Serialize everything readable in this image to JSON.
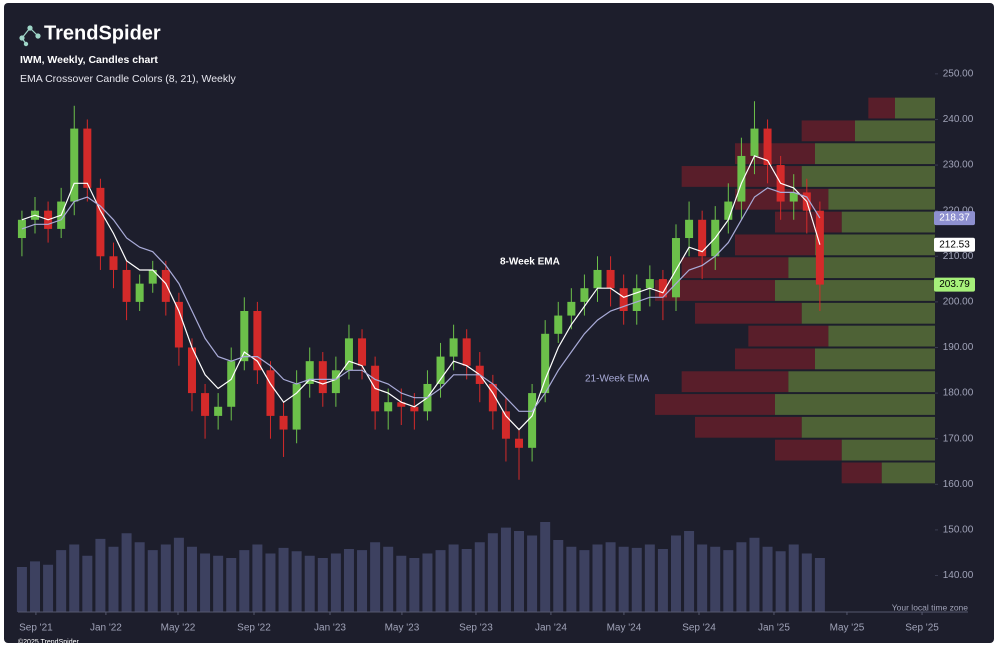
{
  "header": {
    "logo": "TrendSpider",
    "chart_name": "IWM, Weekly, Candles chart",
    "indicator": "EMA Crossover Candle Colors (8, 21), Weekly"
  },
  "footer": {
    "timezone": "Your local time zone",
    "copyright": "©2025 TrendSpider"
  },
  "chart_data": {
    "type": "candlestick",
    "candles": {
      "open": [
        214,
        218,
        220,
        216,
        222,
        238,
        225,
        210,
        207,
        200,
        204,
        207,
        200,
        190,
        180,
        175,
        177,
        187,
        198,
        185,
        175,
        172,
        182,
        187,
        180,
        185,
        192,
        186,
        176,
        178,
        177,
        176,
        182,
        188,
        192,
        186,
        182,
        176,
        170,
        168,
        180,
        193,
        197,
        200,
        203,
        207,
        203,
        198,
        203,
        205,
        201,
        214,
        218,
        210,
        218,
        222,
        232,
        238,
        230,
        222,
        224,
        220
      ],
      "high": [
        220,
        223,
        222,
        225,
        243,
        240,
        227,
        213,
        209,
        206,
        209,
        209,
        202,
        192,
        182,
        180,
        190,
        201,
        200,
        187,
        178,
        185,
        190,
        189,
        188,
        195,
        194,
        188,
        181,
        181,
        180,
        185,
        191,
        195,
        194,
        189,
        184,
        179,
        172,
        182,
        196,
        200,
        203,
        206,
        210,
        210,
        206,
        206,
        208,
        207,
        217,
        222,
        220,
        221,
        226,
        236,
        244,
        240,
        232,
        228,
        227,
        222
      ],
      "low": [
        210,
        215,
        213,
        214,
        219,
        222,
        207,
        203,
        196,
        198,
        202,
        197,
        186,
        176,
        170,
        172,
        174,
        185,
        182,
        170,
        166,
        169,
        179,
        177,
        177,
        183,
        183,
        172,
        172,
        173,
        172,
        174,
        179,
        185,
        183,
        178,
        172,
        165,
        161,
        165,
        178,
        191,
        194,
        197,
        200,
        199,
        195,
        195,
        199,
        196,
        198,
        210,
        205,
        207,
        215,
        218,
        228,
        226,
        218,
        218,
        215,
        198
      ],
      "close": [
        218,
        220,
        216,
        222,
        238,
        225,
        210,
        207,
        200,
        204,
        207,
        200,
        190,
        180,
        175,
        177,
        187,
        198,
        185,
        175,
        172,
        182,
        187,
        180,
        185,
        192,
        186,
        176,
        178,
        177,
        176,
        182,
        188,
        192,
        186,
        182,
        176,
        170,
        168,
        180,
        193,
        197,
        200,
        203,
        207,
        203,
        198,
        203,
        205,
        201,
        214,
        218,
        210,
        218,
        222,
        232,
        238,
        230,
        222,
        224,
        220,
        203.79
      ],
      "up_color": "#6cc04a",
      "down_color": "#d42a2a"
    },
    "series": [
      {
        "name": "8-Week EMA",
        "color": "#ffffff",
        "values": [
          218,
          219,
          218,
          219,
          226,
          226,
          220,
          215,
          209,
          207,
          207,
          204,
          198,
          190,
          184,
          181,
          183,
          189,
          187,
          182,
          178,
          180,
          183,
          182,
          183,
          187,
          186,
          181,
          180,
          178,
          177,
          179,
          183,
          187,
          186,
          184,
          180,
          175,
          172,
          175,
          183,
          190,
          195,
          199,
          203,
          203,
          201,
          202,
          203,
          202,
          207,
          212,
          211,
          214,
          218,
          226,
          232,
          231,
          226,
          225,
          222,
          212.53
        ]
      },
      {
        "name": "21-Week EMA",
        "color": "#a9abd8",
        "values": [
          216,
          217,
          217,
          218,
          222,
          223,
          221,
          218,
          214,
          212,
          211,
          208,
          204,
          198,
          192,
          188,
          187,
          188,
          188,
          186,
          183,
          182,
          183,
          183,
          183,
          185,
          185,
          183,
          182,
          180,
          179,
          179,
          181,
          184,
          184,
          184,
          182,
          179,
          176,
          176,
          180,
          185,
          189,
          193,
          196,
          198,
          199,
          200,
          201,
          201,
          204,
          207,
          208,
          210,
          213,
          218,
          223,
          225,
          224,
          224,
          223,
          218.37
        ]
      }
    ],
    "volume": {
      "color": "#3d4160",
      "values": [
        40,
        45,
        42,
        55,
        60,
        50,
        65,
        58,
        70,
        62,
        55,
        60,
        66,
        58,
        52,
        50,
        48,
        55,
        60,
        52,
        57,
        54,
        50,
        48,
        52,
        56,
        55,
        62,
        58,
        50,
        48,
        52,
        55,
        60,
        56,
        62,
        70,
        75,
        72,
        68,
        80,
        64,
        58,
        55,
        60,
        62,
        58,
        57,
        60,
        56,
        68,
        72,
        60,
        58,
        55,
        62,
        66,
        58,
        54,
        60,
        52,
        48
      ]
    },
    "volume_profile": {
      "bins": [
        160,
        165,
        170,
        175,
        180,
        185,
        190,
        195,
        200,
        205,
        210,
        215,
        220,
        225,
        230,
        235,
        240,
        245
      ],
      "up": [
        20,
        35,
        50,
        60,
        55,
        45,
        40,
        50,
        60,
        55,
        45,
        35,
        40,
        50,
        45,
        30,
        15
      ],
      "down": [
        15,
        25,
        40,
        45,
        40,
        30,
        30,
        40,
        45,
        40,
        30,
        25,
        35,
        45,
        30,
        20,
        10
      ],
      "up_color": "#5f7a3a",
      "down_color": "#6e1f2a"
    },
    "ylim": [
      132,
      264
    ],
    "yticks": [
      {
        "value": 140,
        "label": "140.00"
      },
      {
        "value": 150,
        "label": "150.00"
      },
      {
        "value": 160,
        "label": "160.00"
      },
      {
        "value": 170,
        "label": "170.00"
      },
      {
        "value": 180,
        "label": "180.00"
      },
      {
        "value": 190,
        "label": "190.00"
      },
      {
        "value": 200,
        "label": "200.00"
      },
      {
        "value": 210,
        "label": "210.00"
      },
      {
        "value": 220,
        "label": "220.00"
      },
      {
        "value": 230,
        "label": "230.00"
      },
      {
        "value": 240,
        "label": "240.00"
      },
      {
        "value": 250,
        "label": "250.00"
      }
    ],
    "xlim": [
      -0.3,
      69.8
    ],
    "xticks": [
      {
        "value": 1.07,
        "label": "Sep '21"
      },
      {
        "value": 6.42,
        "label": "Jan '22"
      },
      {
        "value": 11.93,
        "label": "May '22"
      },
      {
        "value": 17.74,
        "label": "Sep '22"
      },
      {
        "value": 23.55,
        "label": "Jan '23"
      },
      {
        "value": 29.05,
        "label": "May '23"
      },
      {
        "value": 34.71,
        "label": "Sep '23"
      },
      {
        "value": 40.44,
        "label": "Jan '24"
      },
      {
        "value": 46.02,
        "label": "May '24"
      },
      {
        "value": 51.76,
        "label": "Sep '24"
      },
      {
        "value": 57.49,
        "label": "Jan '25"
      },
      {
        "value": 63.07,
        "label": "May '25"
      },
      {
        "value": 68.81,
        "label": "Sep '25"
      }
    ],
    "tag_colors": [
      "#ffffff",
      "#8e90d0"
    ],
    "last_color": "#a6f07a"
  }
}
